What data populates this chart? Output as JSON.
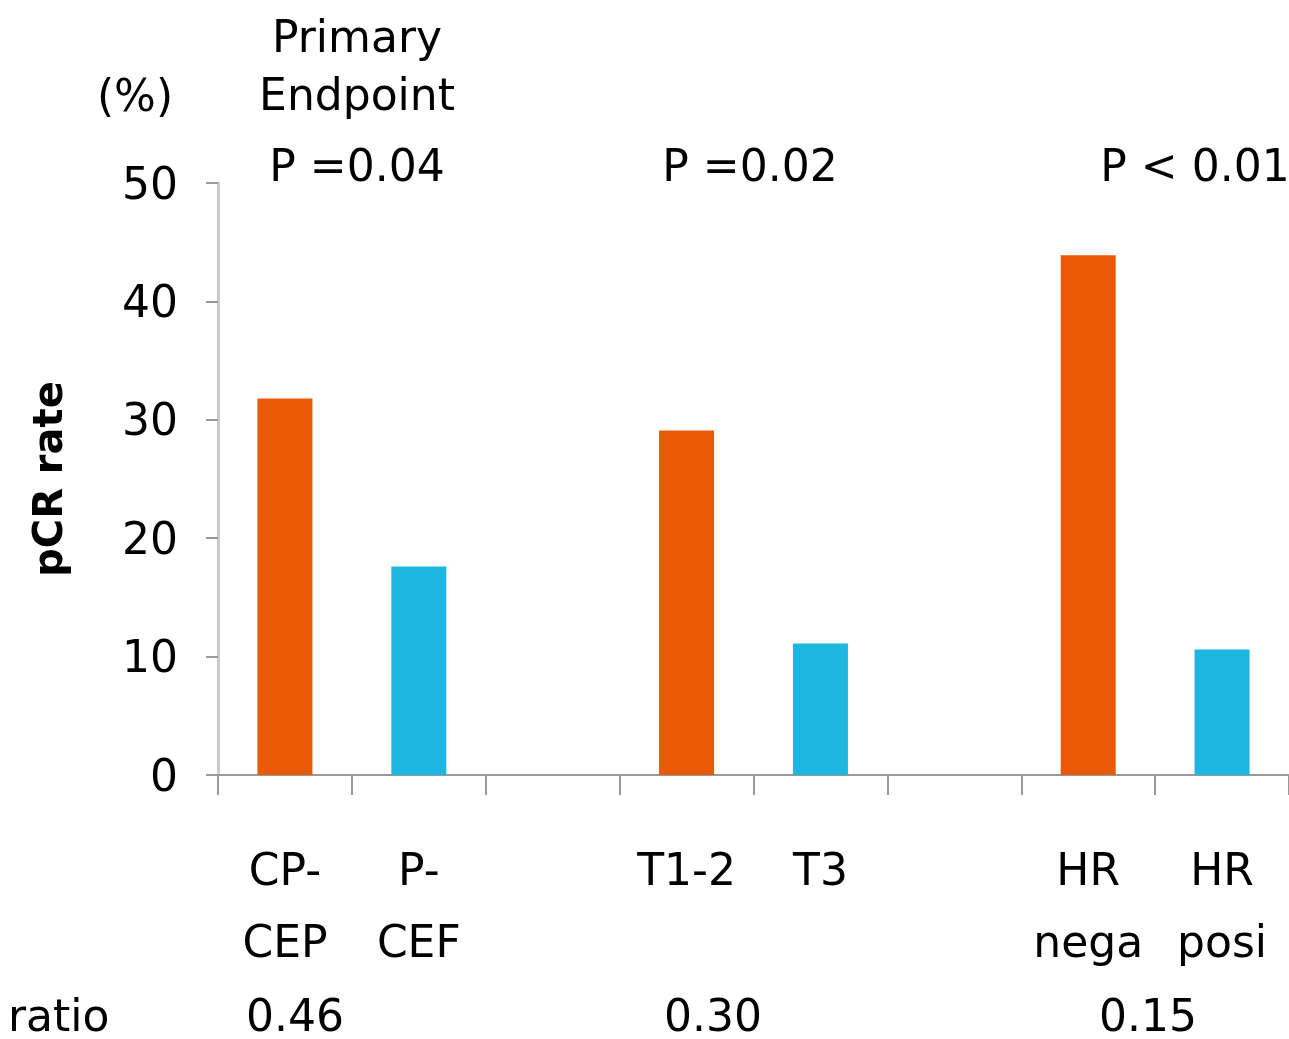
{
  "chart_data": {
    "type": "bar",
    "ylabel": "pCR rate",
    "categories": [
      "CP-\nCEP",
      "P-\nCEF",
      null,
      "T1-2",
      "T3",
      null,
      "HR\nnega",
      "HR\nposi"
    ],
    "values": [
      31.8,
      17.6,
      null,
      29.1,
      11.1,
      null,
      43.9,
      10.6
    ],
    "colors": [
      "#e85a05",
      "#1cb6e0",
      null,
      "#e85a05",
      "#1cb6e0",
      null,
      "#e85a05",
      "#1cb6e0"
    ],
    "ylim": [
      0,
      50
    ],
    "yticks": [
      0,
      10,
      20,
      30,
      40,
      50
    ],
    "grid": false,
    "annotations": [
      "(%)",
      "Primary\nEndpoint",
      "P =0.04",
      "P =0.02",
      "P < 0.01",
      "ratio",
      "0.46",
      "0.30",
      "0.15"
    ]
  }
}
